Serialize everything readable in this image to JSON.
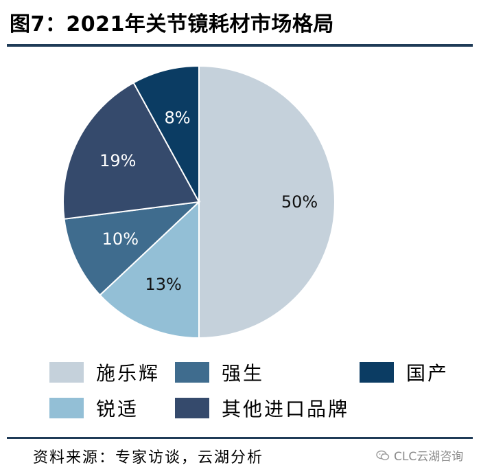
{
  "figure": {
    "title": "图7：2021年关节镜耗材市场格局",
    "source": "资料来源：专家访谈，云湖分析",
    "watermark": "CLC云湖咨询"
  },
  "chart_data": {
    "type": "pie",
    "title": "图7：2021年关节镜耗材市场格局",
    "slices": [
      {
        "label": "施乐辉",
        "value": 50,
        "display": "50%",
        "color": "#c5d1db",
        "label_color": "#111111"
      },
      {
        "label": "锐适",
        "value": 13,
        "display": "13%",
        "color": "#93bfd6",
        "label_color": "#111111"
      },
      {
        "label": "强生",
        "value": 10,
        "display": "10%",
        "color": "#3f6c8e",
        "label_color": "#ffffff"
      },
      {
        "label": "其他进口品牌",
        "value": 19,
        "display": "19%",
        "color": "#354a6c",
        "label_color": "#ffffff"
      },
      {
        "label": "国产",
        "value": 8,
        "display": "8%",
        "color": "#0b3c63",
        "label_color": "#ffffff"
      }
    ],
    "start": "12 o'clock",
    "direction": "clockwise",
    "legend_position": "bottom"
  },
  "legend": [
    {
      "label": "施乐辉",
      "color": "#c5d1db"
    },
    {
      "label": "强生",
      "color": "#3f6c8e"
    },
    {
      "label": "国产",
      "color": "#0b3c63"
    },
    {
      "label": "锐适",
      "color": "#93bfd6"
    },
    {
      "label": "其他进口品牌",
      "color": "#354a6c"
    }
  ]
}
